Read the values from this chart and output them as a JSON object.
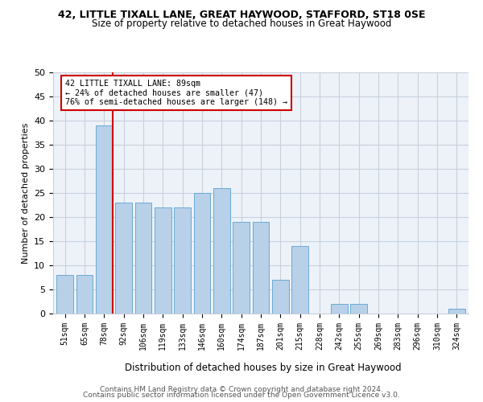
{
  "title1": "42, LITTLE TIXALL LANE, GREAT HAYWOOD, STAFFORD, ST18 0SE",
  "title2": "Size of property relative to detached houses in Great Haywood",
  "xlabel": "Distribution of detached houses by size in Great Haywood",
  "ylabel": "Number of detached properties",
  "categories": [
    "51sqm",
    "65sqm",
    "78sqm",
    "92sqm",
    "106sqm",
    "119sqm",
    "133sqm",
    "146sqm",
    "160sqm",
    "174sqm",
    "187sqm",
    "201sqm",
    "215sqm",
    "228sqm",
    "242sqm",
    "255sqm",
    "269sqm",
    "283sqm",
    "296sqm",
    "310sqm",
    "324sqm"
  ],
  "values": [
    8,
    8,
    39,
    23,
    23,
    22,
    22,
    25,
    26,
    19,
    19,
    7,
    14,
    0,
    2,
    2,
    0,
    0,
    0,
    0,
    1
  ],
  "bar_color": "#b8d0e8",
  "bar_edge_color": "#6aaad4",
  "vline_color": "#cc0000",
  "annotation_box_color": "#cc0000",
  "ylim": [
    0,
    50
  ],
  "yticks": [
    0,
    5,
    10,
    15,
    20,
    25,
    30,
    35,
    40,
    45,
    50
  ],
  "bg_color": "#edf2f9",
  "grid_color": "#c8d0dc",
  "footer1": "Contains HM Land Registry data © Crown copyright and database right 2024.",
  "footer2": "Contains public sector information licensed under the Open Government Licence v3.0."
}
